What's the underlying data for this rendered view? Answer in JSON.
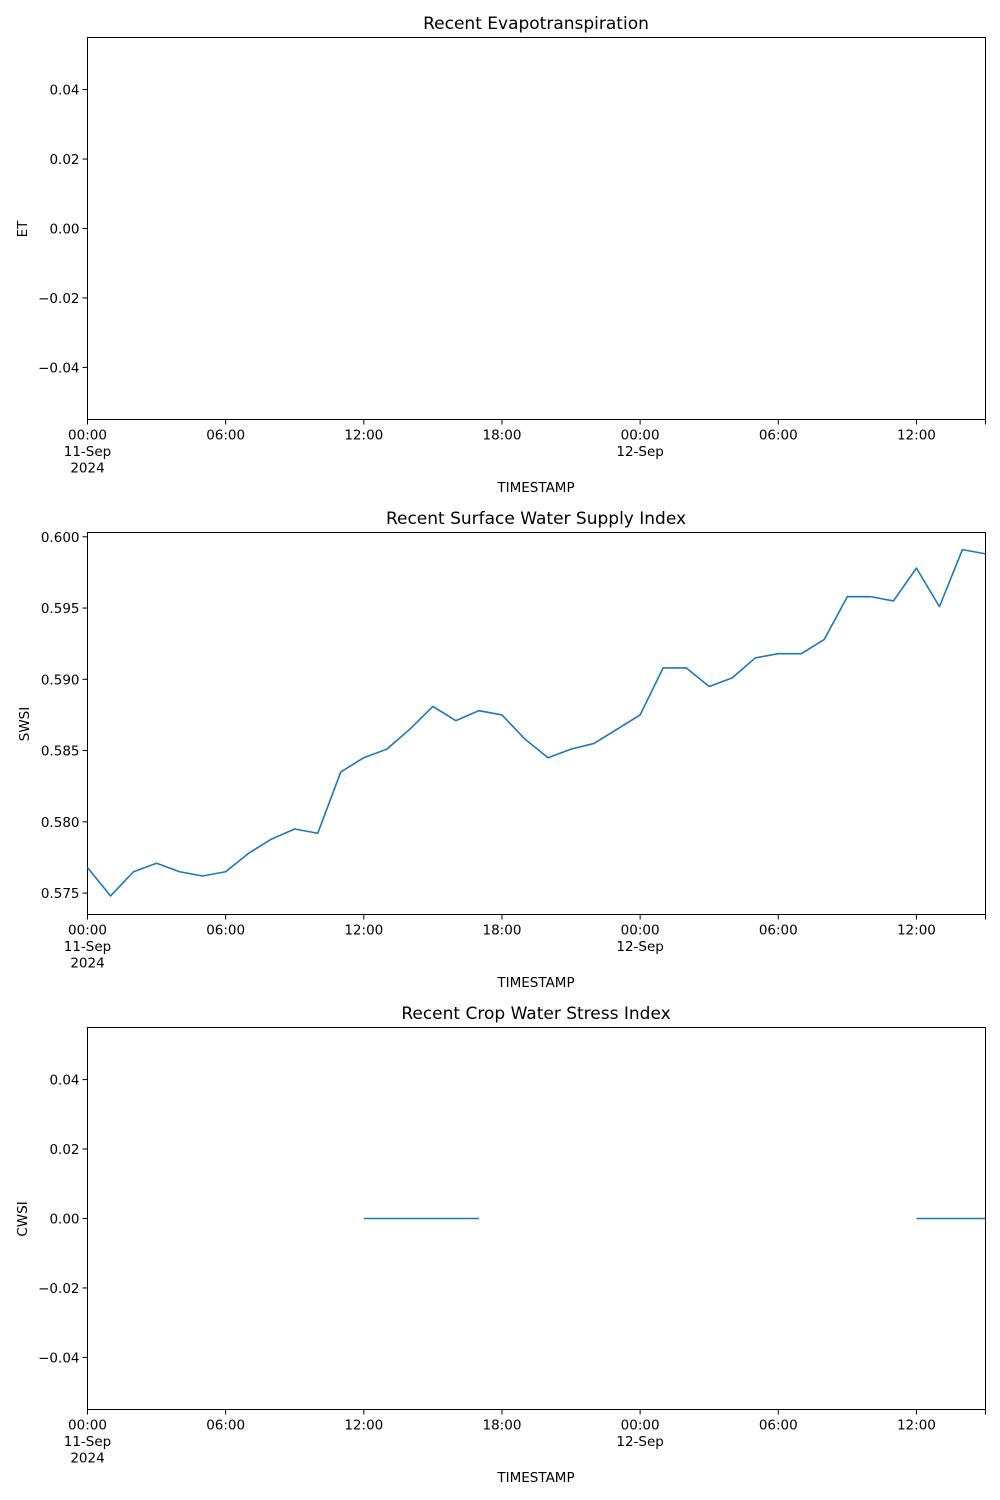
{
  "figure": {
    "background": "#ffffff",
    "line_color": "#1f77b4"
  },
  "chart_data": [
    {
      "type": "line",
      "title": "Recent Evapotranspiration",
      "xlabel": "TIMESTAMP",
      "ylabel": "ET",
      "xlim": [
        0,
        39
      ],
      "ylim": [
        -0.055,
        0.055
      ],
      "yticks": [
        {
          "value": -0.04,
          "label": "−0.04"
        },
        {
          "value": -0.02,
          "label": "−0.02"
        },
        {
          "value": 0.0,
          "label": "0.00"
        },
        {
          "value": 0.02,
          "label": "0.02"
        },
        {
          "value": 0.04,
          "label": "0.04"
        }
      ],
      "xticks": [
        {
          "value": 0,
          "lines": [
            "00:00",
            "11-Sep",
            "2024"
          ]
        },
        {
          "value": 6,
          "lines": [
            "06:00"
          ]
        },
        {
          "value": 12,
          "lines": [
            "12:00"
          ]
        },
        {
          "value": 18,
          "lines": [
            "18:00"
          ]
        },
        {
          "value": 24,
          "lines": [
            "00:00",
            "12-Sep"
          ]
        },
        {
          "value": 30,
          "lines": [
            "06:00"
          ]
        },
        {
          "value": 36,
          "lines": [
            "12:00"
          ]
        }
      ],
      "series": [
        {
          "name": "ET",
          "x": [],
          "values": []
        }
      ]
    },
    {
      "type": "line",
      "title": "Recent Surface Water Supply Index",
      "xlabel": "TIMESTAMP",
      "ylabel": "SWSI",
      "xlim": [
        0,
        39
      ],
      "ylim": [
        0.5735,
        0.6003
      ],
      "yticks": [
        {
          "value": 0.575,
          "label": "0.575"
        },
        {
          "value": 0.58,
          "label": "0.580"
        },
        {
          "value": 0.585,
          "label": "0.585"
        },
        {
          "value": 0.59,
          "label": "0.590"
        },
        {
          "value": 0.595,
          "label": "0.595"
        },
        {
          "value": 0.6,
          "label": "0.600"
        }
      ],
      "xticks": [
        {
          "value": 0,
          "lines": [
            "00:00",
            "11-Sep",
            "2024"
          ]
        },
        {
          "value": 6,
          "lines": [
            "06:00"
          ]
        },
        {
          "value": 12,
          "lines": [
            "12:00"
          ]
        },
        {
          "value": 18,
          "lines": [
            "18:00"
          ]
        },
        {
          "value": 24,
          "lines": [
            "00:00",
            "12-Sep"
          ]
        },
        {
          "value": 30,
          "lines": [
            "06:00"
          ]
        },
        {
          "value": 36,
          "lines": [
            "12:00"
          ]
        }
      ],
      "series": [
        {
          "name": "SWSI",
          "x": [
            0,
            1,
            2,
            3,
            4,
            5,
            6,
            7,
            8,
            9,
            10,
            11,
            12,
            13,
            14,
            15,
            16,
            17,
            18,
            19,
            20,
            21,
            22,
            23,
            24,
            25,
            26,
            27,
            28,
            29,
            30,
            31,
            32,
            33,
            34,
            35,
            36,
            37,
            38,
            39
          ],
          "values": [
            0.5768,
            0.5748,
            0.5765,
            0.5771,
            0.5765,
            0.5762,
            0.5765,
            0.5778,
            0.5788,
            0.5795,
            0.5792,
            0.5835,
            0.5845,
            0.5851,
            0.5865,
            0.5881,
            0.5871,
            0.5878,
            0.5875,
            0.5858,
            0.5845,
            0.5851,
            0.5855,
            0.5865,
            0.5875,
            0.5908,
            0.5908,
            0.5895,
            0.5901,
            0.5915,
            0.5918,
            0.5918,
            0.5928,
            0.5958,
            0.5958,
            0.5955,
            0.5978,
            0.5951,
            0.5991,
            0.5988
          ]
        }
      ]
    },
    {
      "type": "line",
      "title": "Recent Crop Water Stress Index",
      "xlabel": "TIMESTAMP",
      "ylabel": "CWSI",
      "xlim": [
        0,
        39
      ],
      "ylim": [
        -0.055,
        0.055
      ],
      "yticks": [
        {
          "value": -0.04,
          "label": "−0.04"
        },
        {
          "value": -0.02,
          "label": "−0.02"
        },
        {
          "value": 0.0,
          "label": "0.00"
        },
        {
          "value": 0.02,
          "label": "0.02"
        },
        {
          "value": 0.04,
          "label": "0.04"
        }
      ],
      "xticks": [
        {
          "value": 0,
          "lines": [
            "00:00",
            "11-Sep",
            "2024"
          ]
        },
        {
          "value": 6,
          "lines": [
            "06:00"
          ]
        },
        {
          "value": 12,
          "lines": [
            "12:00"
          ]
        },
        {
          "value": 18,
          "lines": [
            "18:00"
          ]
        },
        {
          "value": 24,
          "lines": [
            "00:00",
            "12-Sep"
          ]
        },
        {
          "value": 30,
          "lines": [
            "06:00"
          ]
        },
        {
          "value": 36,
          "lines": [
            "12:00"
          ]
        }
      ],
      "series": [
        {
          "name": "CWSI",
          "x": [
            0,
            1,
            2,
            3,
            4,
            5,
            6,
            7,
            8,
            9,
            10,
            11,
            12,
            13,
            14,
            15,
            16,
            17,
            18,
            19,
            20,
            21,
            22,
            23,
            24,
            25,
            26,
            27,
            28,
            29,
            30,
            31,
            32,
            33,
            34,
            35,
            36,
            37,
            38,
            39
          ],
          "values": [
            null,
            null,
            null,
            null,
            null,
            null,
            null,
            null,
            null,
            null,
            null,
            null,
            0,
            0,
            0,
            0,
            0,
            0,
            null,
            null,
            null,
            null,
            null,
            null,
            null,
            null,
            null,
            null,
            null,
            null,
            null,
            null,
            null,
            null,
            null,
            null,
            0,
            0,
            0,
            0
          ]
        }
      ]
    }
  ]
}
